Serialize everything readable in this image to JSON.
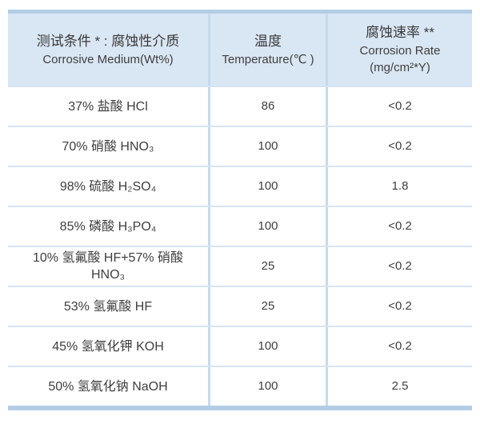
{
  "table": {
    "header": {
      "medium": {
        "zh": "测试条件 * : 腐蚀性介质",
        "en": "Corrosive Medium(Wt%)"
      },
      "temperature": {
        "zh": "温度",
        "en": "Temperature(℃ )"
      },
      "rate": {
        "zh": "腐蚀速率 **",
        "en": "Corrosion Rate",
        "unit": "(mg/cm²*Y)"
      }
    },
    "rows": [
      {
        "medium": "37% 盐酸 HCl",
        "temperature": "86",
        "rate": "<0.2"
      },
      {
        "medium": "70% 硝酸 HNO₃",
        "temperature": "100",
        "rate": "<0.2"
      },
      {
        "medium": "98% 硫酸 H₂SO₄",
        "temperature": "100",
        "rate": "1.8"
      },
      {
        "medium": "85% 磷酸 H₃PO₄",
        "temperature": "100",
        "rate": "<0.2"
      },
      {
        "medium": "10% 氢氟酸 HF+57% 硝酸 HNO₃",
        "temperature": "25",
        "rate": "<0.2"
      },
      {
        "medium": "53% 氢氟酸 HF",
        "temperature": "25",
        "rate": "<0.2"
      },
      {
        "medium": "45% 氢氧化钾 KOH",
        "temperature": "100",
        "rate": "<0.2"
      },
      {
        "medium": "50% 氢氧化钠 NaOH",
        "temperature": "100",
        "rate": "2.5"
      }
    ]
  },
  "colors": {
    "header_background": "#d9e6f3",
    "accent_border": "#b4cde6",
    "column_divider": "#c5daee",
    "row_divider": "#d7e4f1",
    "text": "#3f3f3f"
  }
}
